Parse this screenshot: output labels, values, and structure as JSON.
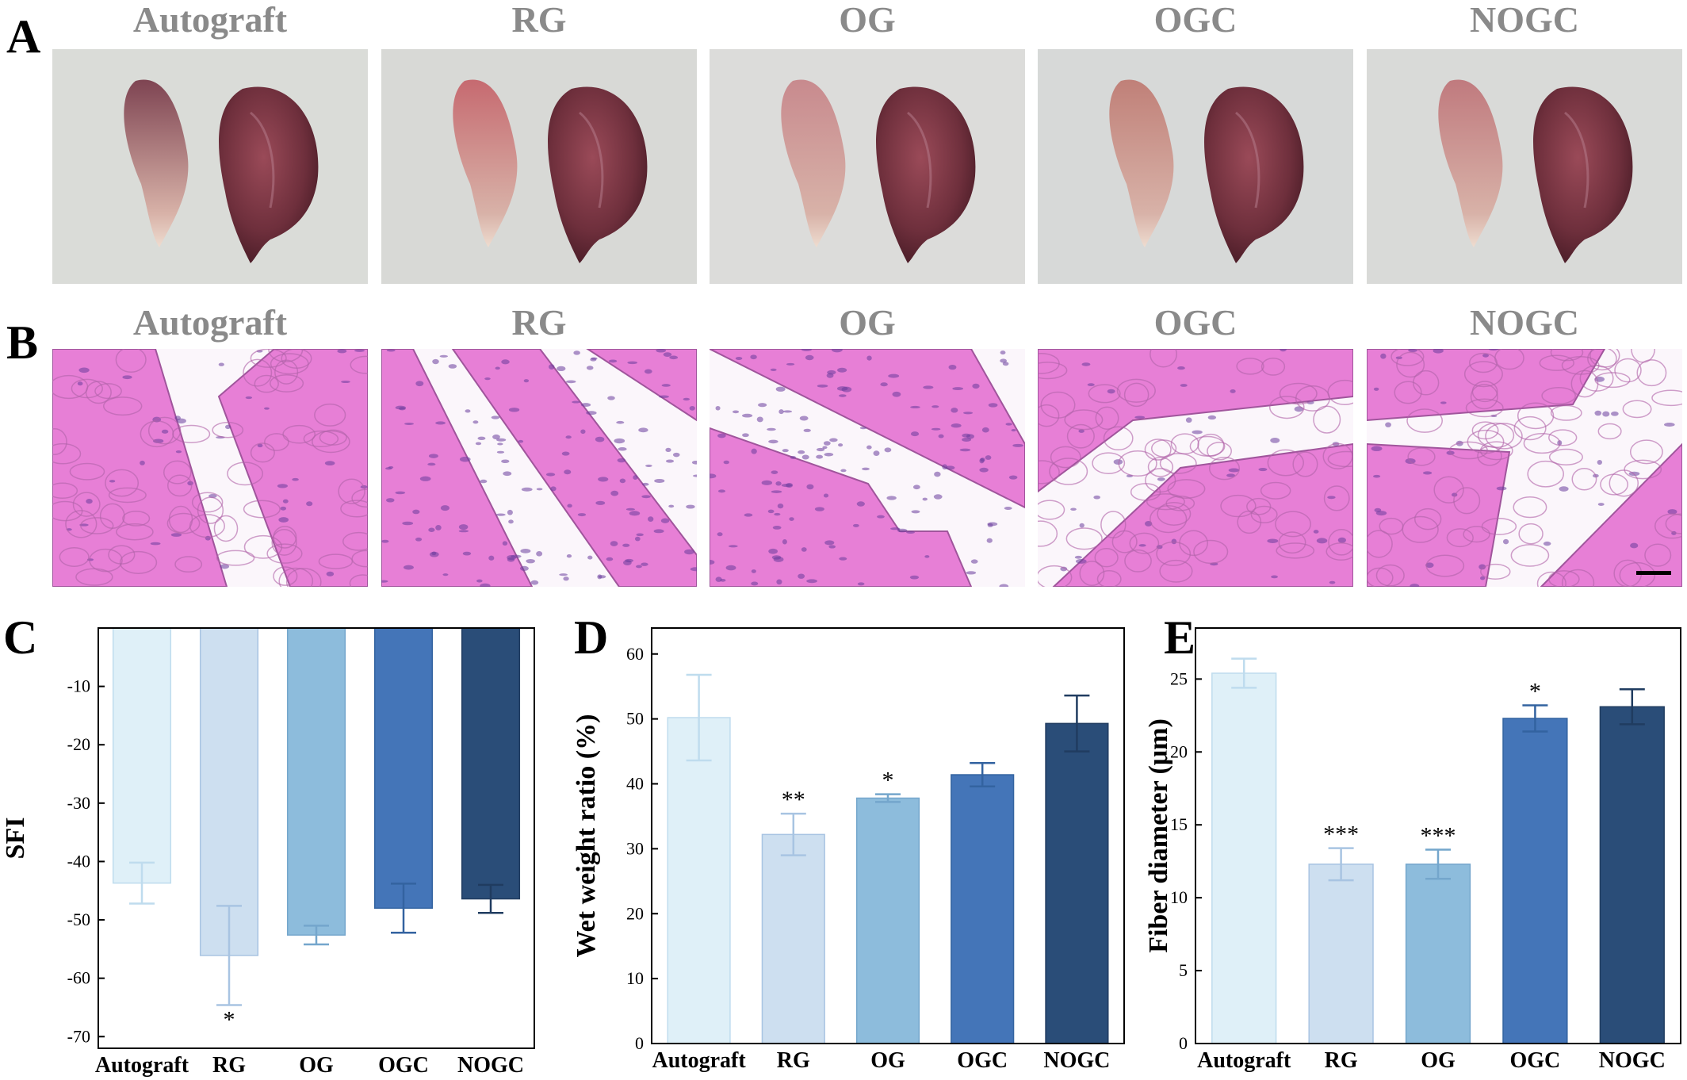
{
  "figure": {
    "panel_letters": [
      "A",
      "B",
      "C",
      "D",
      "E"
    ],
    "groups": [
      "Autograft",
      "RG",
      "OG",
      "OGC",
      "NOGC"
    ],
    "colors": [
      "#dff0f8",
      "#cddff0",
      "#8dbcdc",
      "#4475b8",
      "#2a4d78"
    ]
  },
  "chart_data": [
    {
      "type": "bar",
      "panel": "C",
      "categories": [
        "Autograft",
        "RG",
        "OG",
        "OGC",
        "NOGC"
      ],
      "values": [
        -43.7,
        -56.1,
        -52.6,
        -48.0,
        -46.4
      ],
      "errors": [
        3.5,
        8.5,
        1.6,
        4.2,
        2.4
      ],
      "significance": [
        "",
        "*",
        "",
        "",
        ""
      ],
      "ylabel": "SFI",
      "ylim": [
        -72,
        0
      ],
      "yticks": [
        -10,
        -20,
        -30,
        -40,
        -50,
        -60,
        -70
      ],
      "xlabel": "",
      "title": ""
    },
    {
      "type": "bar",
      "panel": "D",
      "categories": [
        "Autograft",
        "RG",
        "OG",
        "OGC",
        "NOGC"
      ],
      "values": [
        50.2,
        32.2,
        37.8,
        41.4,
        49.3
      ],
      "errors": [
        6.6,
        3.2,
        0.6,
        1.8,
        4.3
      ],
      "significance": [
        "",
        "**",
        "*",
        "",
        ""
      ],
      "ylabel": "Wet weight ratio (%)",
      "ylim": [
        0,
        64
      ],
      "yticks": [
        0,
        10,
        20,
        30,
        40,
        50,
        60
      ],
      "xlabel": "",
      "title": ""
    },
    {
      "type": "bar",
      "panel": "E",
      "categories": [
        "Autograft",
        "RG",
        "OG",
        "OGC",
        "NOGC"
      ],
      "values": [
        25.4,
        12.3,
        12.3,
        22.3,
        23.1
      ],
      "errors": [
        1.0,
        1.1,
        1.0,
        0.9,
        1.2
      ],
      "significance": [
        "",
        "***",
        "***",
        "*",
        ""
      ],
      "ylabel": "Fiber diameter (μm)",
      "ylim": [
        0,
        28.5
      ],
      "yticks": [
        0,
        5,
        10,
        15,
        20,
        25
      ],
      "xlabel": "",
      "title": ""
    }
  ]
}
